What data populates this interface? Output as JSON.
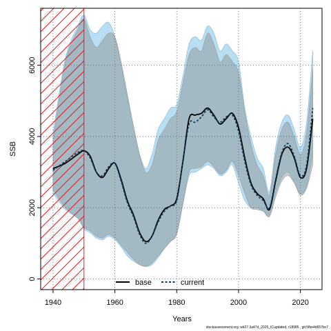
{
  "chart_data": {
    "type": "line",
    "xlabel": "Years",
    "ylabel": "SSB",
    "xlim": [
      1936,
      2027
    ],
    "ylim": [
      -300,
      7600
    ],
    "x_ticks": [
      1940,
      1960,
      1980,
      2000,
      2020
    ],
    "y_ticks": [
      0,
      2000,
      4000,
      6000
    ],
    "grid": "dotted",
    "hatched_period": [
      1936,
      1950
    ],
    "legend_position": "bottom-center",
    "legend": [
      {
        "name": "base",
        "style": "solid",
        "color": "#000000"
      },
      {
        "name": "current",
        "style": "dashed",
        "color": "#0b3b5c"
      }
    ],
    "colors": {
      "base_band": "#8c8c8c",
      "current_band": "#7cc3ea",
      "base_line": "#000000",
      "current_line": "#0b3b5c",
      "hatch": "#e8161c"
    },
    "footnote": "stockassessment.org, wit27.3a47d_2025_ICupdated, r18985 , git:5fbe4d657bc7",
    "series": [
      {
        "name": "base",
        "x": [
          1940,
          1944,
          1948,
          1950,
          1952,
          1954,
          1956,
          1958,
          1960,
          1962,
          1964,
          1966,
          1968,
          1970,
          1972,
          1974,
          1976,
          1978,
          1980,
          1982,
          1984,
          1986,
          1988,
          1990,
          1992,
          1994,
          1996,
          1998,
          2000,
          2002,
          2004,
          2006,
          2008,
          2010,
          2012,
          2014,
          2016,
          2018,
          2020,
          2022,
          2024
        ],
        "y": [
          3100,
          3250,
          3500,
          3600,
          3450,
          3000,
          2850,
          3100,
          3250,
          2800,
          2200,
          1800,
          1300,
          1050,
          1200,
          1650,
          1950,
          2050,
          2250,
          3300,
          4500,
          4600,
          4650,
          4800,
          4600,
          4350,
          4500,
          4650,
          4250,
          3400,
          2700,
          2400,
          2250,
          1950,
          2750,
          3500,
          3700,
          3400,
          2850,
          3100,
          4500
        ],
        "lower": [
          2500,
          2000,
          1700,
          1450,
          1350,
          1200,
          1150,
          1250,
          1150,
          950,
          750,
          550,
          400,
          350,
          450,
          650,
          850,
          1050,
          1250,
          2100,
          3000,
          3100,
          3150,
          3300,
          3150,
          2950,
          3050,
          3300,
          2900,
          2400,
          2000,
          1950,
          1900,
          1750,
          2300,
          2750,
          2900,
          2700,
          2350,
          2550,
          3200
        ],
        "upper": [
          3900,
          6100,
          7000,
          7300,
          6800,
          6500,
          6700,
          6900,
          6800,
          6100,
          5200,
          4300,
          3500,
          3000,
          3200,
          3900,
          4200,
          4500,
          4700,
          5500,
          6300,
          6500,
          6400,
          6900,
          6600,
          6100,
          6300,
          6100,
          5800,
          4700,
          3800,
          3200,
          2900,
          2350,
          3500,
          4200,
          4400,
          4000,
          3500,
          4100,
          5900
        ]
      },
      {
        "name": "current",
        "x": [
          1940,
          1944,
          1948,
          1950,
          1952,
          1954,
          1956,
          1958,
          1960,
          1962,
          1964,
          1966,
          1968,
          1970,
          1972,
          1974,
          1976,
          1978,
          1980,
          1982,
          1984,
          1986,
          1988,
          1990,
          1992,
          1994,
          1996,
          1998,
          2000,
          2002,
          2004,
          2006,
          2008,
          2010,
          2012,
          2014,
          2016,
          2018,
          2020,
          2022,
          2024
        ],
        "y": [
          3050,
          3300,
          3550,
          3600,
          3400,
          3000,
          2900,
          3150,
          3250,
          2750,
          2150,
          1750,
          1250,
          1000,
          1200,
          1600,
          1900,
          2050,
          2200,
          3300,
          4350,
          4400,
          4550,
          4750,
          4550,
          4400,
          4550,
          4600,
          4150,
          3300,
          2650,
          2350,
          2200,
          2000,
          2800,
          3550,
          3800,
          3450,
          2900,
          3200,
          4800
        ],
        "lower": [
          2400,
          1950,
          1700,
          1400,
          1300,
          1150,
          1100,
          1200,
          1100,
          900,
          650,
          500,
          400,
          350,
          400,
          600,
          850,
          1050,
          1300,
          2100,
          2900,
          3000,
          3100,
          3200,
          3100,
          2900,
          3000,
          3200,
          2700,
          2200,
          2000,
          2000,
          1900,
          1800,
          2400,
          2850,
          3000,
          2700,
          2400,
          2600,
          3500
        ],
        "upper": [
          4100,
          6200,
          7100,
          7400,
          7000,
          6900,
          7100,
          7200,
          6800,
          6000,
          5100,
          4300,
          3500,
          3100,
          3500,
          4200,
          4500,
          4800,
          4900,
          5700,
          6600,
          6800,
          6700,
          7100,
          6900,
          6400,
          6600,
          6400,
          6100,
          4800,
          4000,
          3400,
          3100,
          2450,
          3700,
          4400,
          4600,
          4200,
          3700,
          4400,
          6400
        ]
      }
    ]
  }
}
